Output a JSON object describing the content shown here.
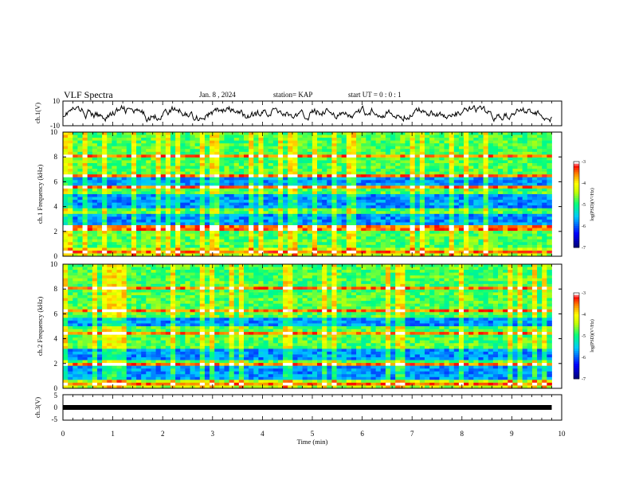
{
  "header": {
    "title": "VLF Spectra",
    "date": "Jan. 8 , 2024",
    "station": "station= KAP",
    "start_ut": "start UT = 0 : 0 : 1"
  },
  "colors": {
    "spectrogram_scale": [
      "#000080",
      "#0000ff",
      "#00c8ff",
      "#00ff80",
      "#ffff00",
      "#ff8000",
      "#ff0000",
      "#ffffff"
    ],
    "waveform": "#000000"
  },
  "chart_data": [
    {
      "type": "line",
      "id": "ch1-waveform",
      "ylabel": "ch.1(V)",
      "ylim": [
        -10,
        10
      ],
      "y_ticks": [
        "10",
        "-10"
      ],
      "xlim": [
        0,
        10
      ],
      "x_max_data": 9.8,
      "description_values": "noisy waveform oscillating roughly between -4 V and 4 V over 0-9.8 min"
    },
    {
      "type": "heatmap",
      "id": "ch1-spectrogram",
      "ylabel": "ch.1 Frequency (kHz)",
      "ylim": [
        0,
        10
      ],
      "y_ticks": [
        "0",
        "2",
        "4",
        "6",
        "8",
        "10"
      ],
      "xlim": [
        0,
        10
      ],
      "x_max_data": 9.8,
      "colorbar": {
        "label": "log(PSD)(V²/Hz)",
        "range": [
          -7,
          -3
        ],
        "ticks": [
          "-3",
          "-4",
          "-5",
          "-6",
          "-7"
        ]
      },
      "low_power_bands_khz": [
        [
          2.3,
          3.3
        ],
        [
          3.8,
          5.0
        ],
        [
          5.7,
          6.3
        ]
      ],
      "high_power_lines_khz": [
        0.3,
        2.1,
        2.3,
        5.5,
        6.5,
        8.0
      ]
    },
    {
      "type": "heatmap",
      "id": "ch2-spectrogram",
      "ylabel": "ch.2 Frequency (kHz)",
      "ylim": [
        0,
        10
      ],
      "y_ticks": [
        "0",
        "2",
        "4",
        "6",
        "8",
        "10"
      ],
      "xlim": [
        0,
        10
      ],
      "x_max_data": 9.8,
      "colorbar": {
        "label": "log(PSD)(V²/Hz)",
        "range": [
          -7,
          -3
        ],
        "ticks": [
          "-3",
          "-4",
          "-5",
          "-6",
          "-7"
        ]
      },
      "low_power_bands_khz": [
        [
          0.5,
          1.8
        ],
        [
          2.2,
          3.2
        ],
        [
          5.0,
          5.6
        ]
      ],
      "high_power_lines_khz": [
        0.3,
        1.9,
        4.5,
        6.3,
        8.0
      ]
    },
    {
      "type": "line",
      "id": "ch3-waveform",
      "ylabel": "ch.3(V)",
      "ylim": [
        -5,
        5
      ],
      "y_ticks": [
        "5",
        "0",
        "-5"
      ],
      "xlim": [
        0,
        10
      ],
      "x_max_data": 9.8,
      "values_constant": 0
    }
  ],
  "xaxis": {
    "label": "Time (min)",
    "ticks": [
      "0",
      "1",
      "2",
      "3",
      "4",
      "5",
      "6",
      "7",
      "8",
      "9",
      "10"
    ]
  }
}
